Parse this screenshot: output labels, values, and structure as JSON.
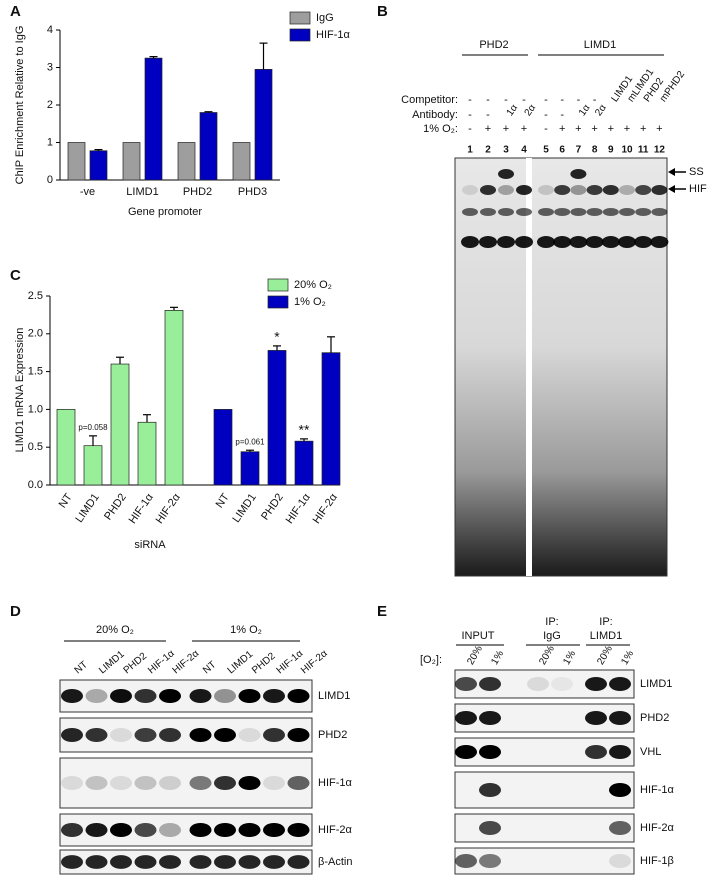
{
  "chart_data": [
    {
      "type": "bar",
      "panel": "A",
      "ylabel": "ChIP Enrichment Relative to IgG",
      "xlabel": "Gene promoter",
      "categories": [
        "-ve",
        "LIMD1",
        "PHD2",
        "PHD3"
      ],
      "series": [
        {
          "name": "IgG",
          "color": "#9e9e9e",
          "values": [
            1,
            1,
            1,
            1
          ]
        },
        {
          "name": "HIF-1α",
          "color": "#0000c0",
          "values": [
            0.78,
            3.25,
            1.8,
            2.95
          ],
          "errors": [
            0.03,
            0.04,
            0.02,
            0.7
          ]
        }
      ],
      "ylim": [
        0,
        4
      ],
      "yticks": [
        0,
        1,
        2,
        3,
        4
      ],
      "legend": "upper-right"
    },
    {
      "type": "bar",
      "panel": "C",
      "ylabel": "LIMD1 mRNA Expression",
      "xlabel": "siRNA",
      "categories": [
        "NT",
        "LIMD1",
        "PHD2",
        "HIF-1α",
        "HIF-2α",
        "NT",
        "LIMD1",
        "PHD2",
        "HIF-1α",
        "HIF-2α"
      ],
      "series": [
        {
          "name": "20% O₂",
          "color": "#99ee99",
          "values": [
            1,
            0.52,
            1.6,
            0.83,
            2.31,
            null,
            null,
            null,
            null,
            null
          ],
          "errors": [
            null,
            0.13,
            0.09,
            0.1,
            0.04,
            null,
            null,
            null,
            null,
            null
          ],
          "annotations": [
            null,
            "p=0.058",
            null,
            null,
            null,
            null,
            null,
            null,
            null,
            null
          ]
        },
        {
          "name": "1% O₂",
          "color": "#0000c0",
          "values": [
            null,
            null,
            null,
            null,
            null,
            1,
            0.44,
            1.78,
            0.58,
            1.75
          ],
          "errors": [
            null,
            null,
            null,
            null,
            null,
            null,
            0.02,
            0.06,
            0.03,
            0.21
          ],
          "annotations": [
            null,
            null,
            null,
            null,
            null,
            null,
            "p=0.061",
            "*",
            "**",
            null
          ]
        }
      ],
      "ylim": [
        0,
        2.5
      ],
      "yticks": [
        {
          "value": 0,
          "label": "0.0"
        },
        0.5,
        {
          "value": 1,
          "label": "1.0"
        },
        1.5,
        {
          "value": 2,
          "label": "2.0"
        },
        2.5
      ],
      "legend": "upper-right"
    }
  ],
  "panel_b": {
    "label": "B",
    "groups": [
      "PHD2",
      "LIMD1"
    ],
    "row_labels": [
      "Competitor:",
      "Antibody:",
      "1% O₂:"
    ],
    "competitor": [
      "-",
      "-",
      "-",
      "-",
      "-",
      "-",
      "-",
      "-",
      "LIMD1",
      "mLIMD1",
      "PHD2",
      "mPHD2"
    ],
    "antibody": [
      "-",
      "-",
      "1α",
      "2α",
      "-",
      "-",
      "1α",
      "2α",
      null,
      null,
      null,
      null
    ],
    "oxygen": [
      "-",
      "+",
      "+",
      "+",
      "-",
      "+",
      "+",
      "+",
      "+",
      "+",
      "+",
      "+"
    ],
    "lanes": [
      1,
      2,
      3,
      4,
      5,
      6,
      7,
      8,
      9,
      10,
      11,
      12
    ],
    "markers": [
      "SS",
      "HIF"
    ]
  },
  "panel_d": {
    "label": "D",
    "groups": [
      "20% O₂",
      "1% O₂"
    ],
    "lanes": [
      "NT",
      "LIMD1",
      "PHD2",
      "HIF-1α",
      "HIF-2α",
      "NT",
      "LIMD1",
      "PHD2",
      "HIF-1α",
      "HIF-2α"
    ],
    "blots": [
      "LIMD1",
      "PHD2",
      "HIF-1α",
      "HIF-2α",
      "β-Actin"
    ]
  },
  "panel_e": {
    "label": "E",
    "groups": [
      [
        "INPUT"
      ],
      [
        "IP:",
        "IgG"
      ],
      [
        "IP:",
        "LIMD1"
      ]
    ],
    "o2_label": "[O₂]:",
    "lanes": [
      "20%",
      "1%",
      "20%",
      "1%",
      "20%",
      "1%"
    ],
    "blots": [
      "LIMD1",
      "PHD2",
      "VHL",
      "HIF-1α",
      "HIF-2α",
      "HIF-1β"
    ]
  }
}
